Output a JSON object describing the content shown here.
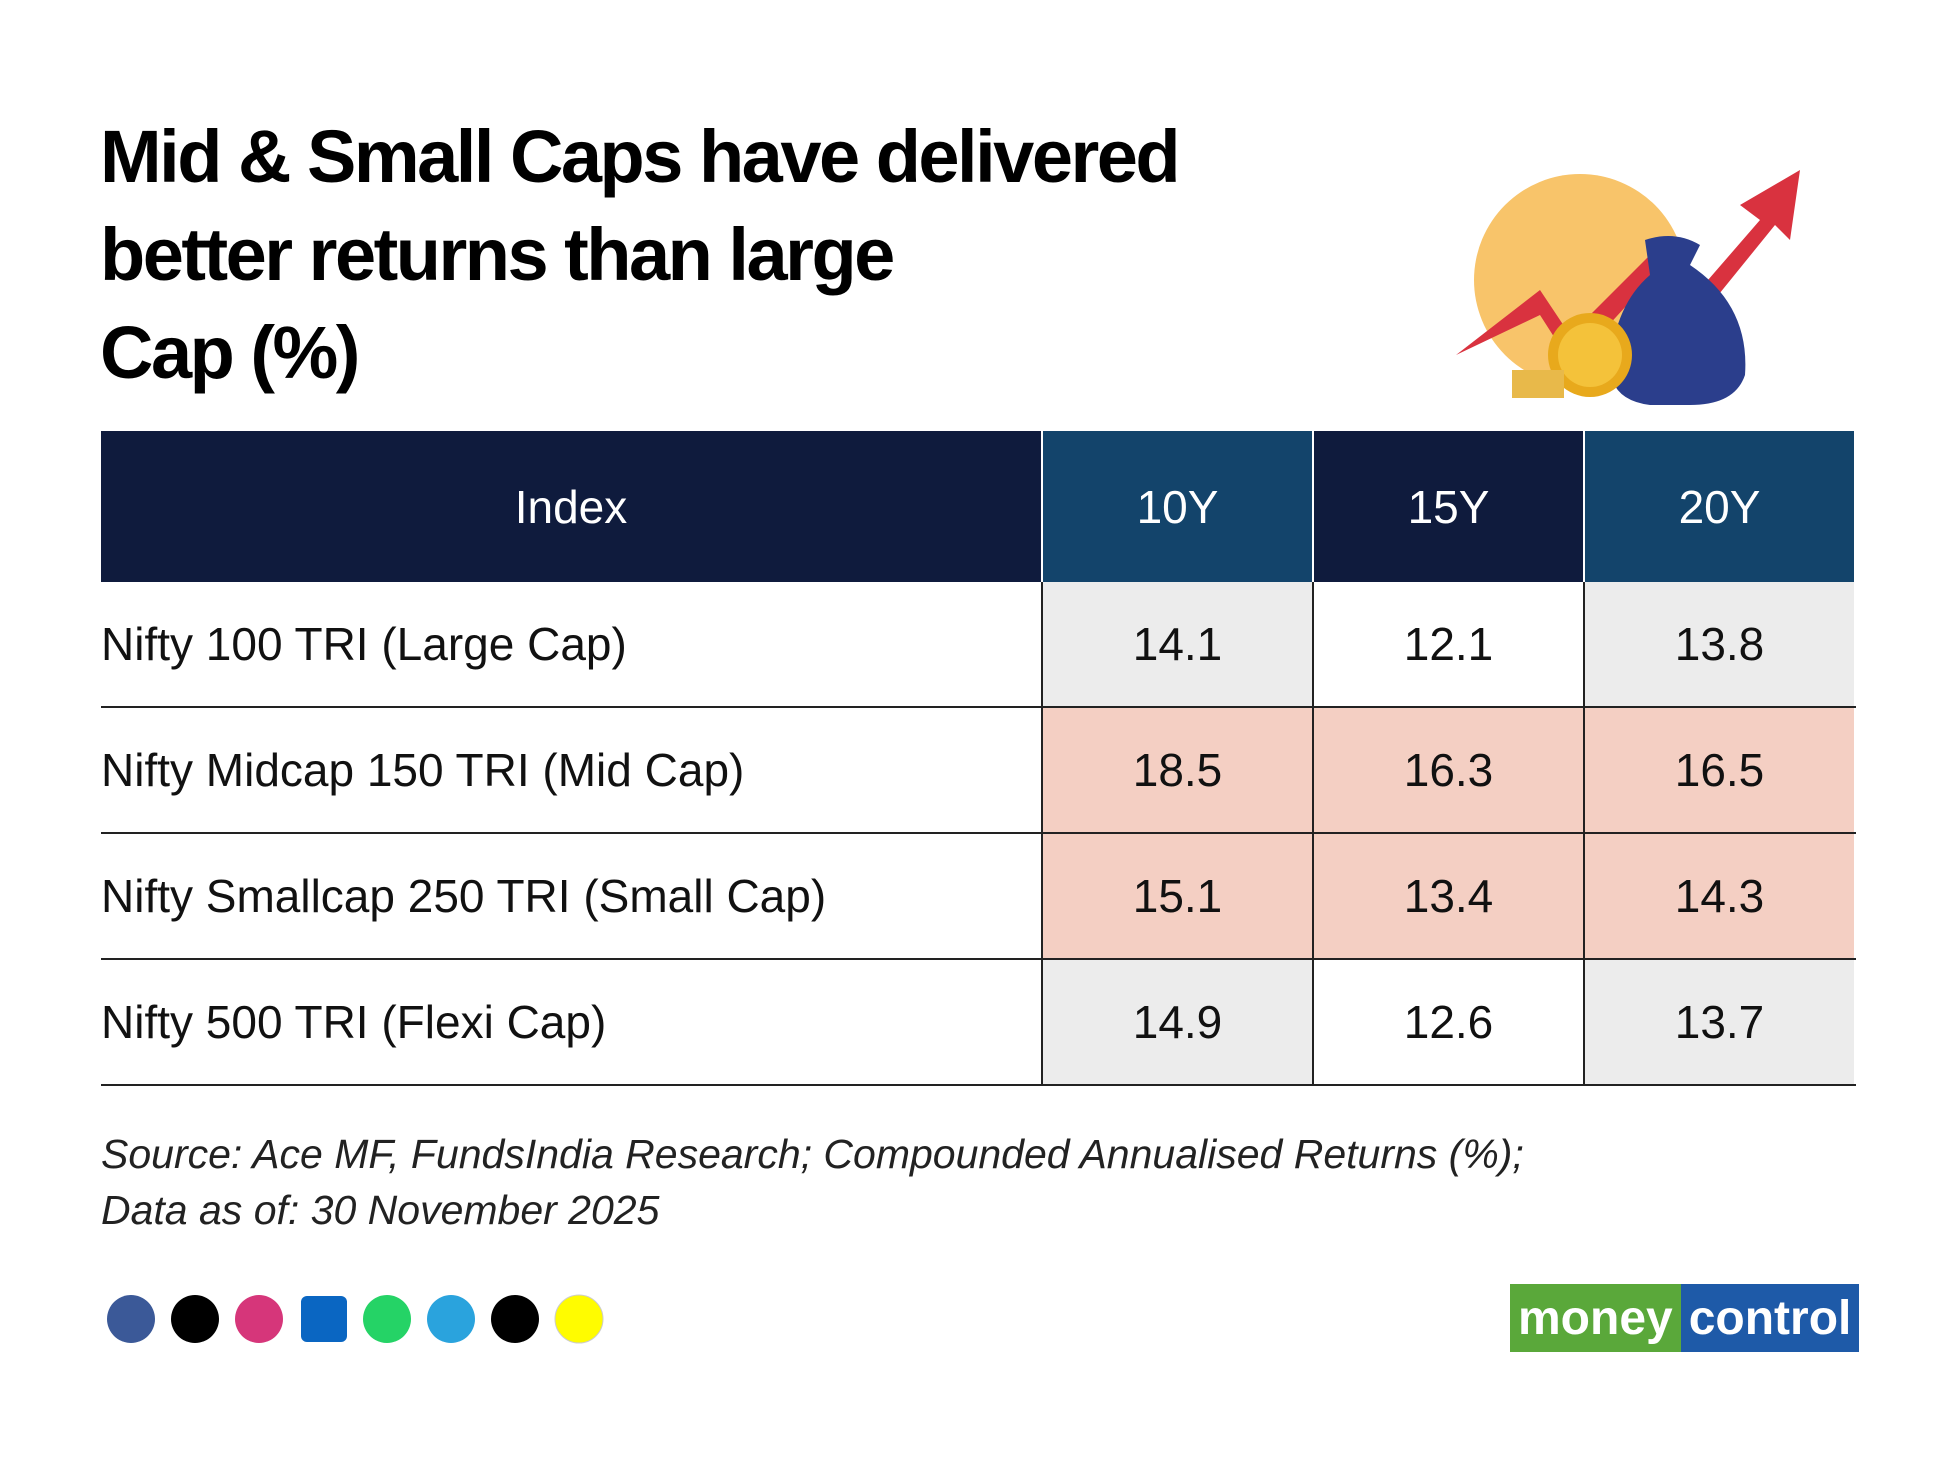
{
  "title_lines": [
    "Mid & Small Caps have delivered",
    "better returns than large",
    "Cap (%)"
  ],
  "table": {
    "header": [
      "Index",
      "10Y",
      "15Y",
      "20Y"
    ],
    "rows": [
      [
        "Nifty 100 TRI (Large Cap)",
        14.1,
        12.1,
        13.8
      ],
      [
        "Nifty Midcap 150 TRI (Mid Cap)",
        18.5,
        16.3,
        16.5
      ],
      [
        "Nifty Smallcap 250 TRI (Small Cap)",
        15.1,
        13.4,
        14.3
      ],
      [
        "Nifty 500 TRI (Flexi Cap)",
        14.9,
        12.6,
        13.7
      ]
    ]
  },
  "source_lines": [
    "Source: Ace MF, FundsIndia Research; Compounded Annualised Returns (%);",
    "Data as of: 30 November 2025"
  ],
  "logo": {
    "left": "money",
    "right": "control"
  }
}
